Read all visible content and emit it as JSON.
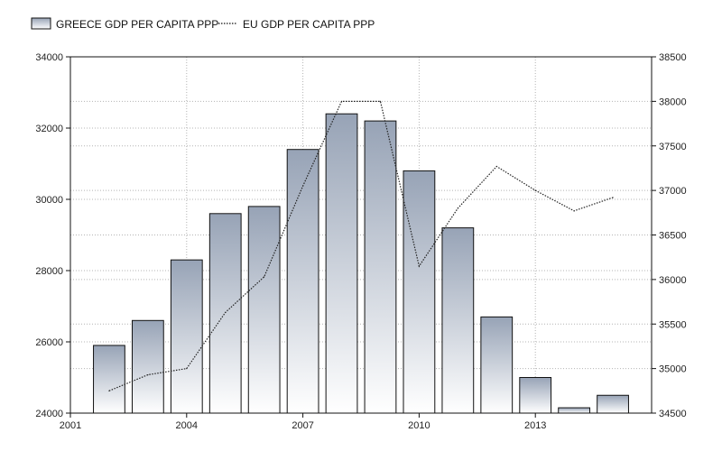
{
  "chart_data": {
    "type": "bar",
    "legend": {
      "placement": "top-left",
      "items": [
        {
          "label": "GREECE GDP PER CAPITA PPP",
          "kind": "bar"
        },
        {
          "label": "EU GDP PER CAPITA PPP",
          "kind": "dotted-line"
        }
      ]
    },
    "x": {
      "range": [
        2001,
        2016
      ],
      "tick_values": [
        2001,
        2004,
        2007,
        2010,
        2013
      ],
      "tick_labels": [
        "2001",
        "2004",
        "2007",
        "2010",
        "2013"
      ]
    },
    "y_left": {
      "range": [
        24000,
        34000
      ],
      "tick_values": [
        24000,
        26000,
        28000,
        30000,
        32000,
        34000
      ],
      "tick_labels": [
        "24000",
        "26000",
        "28000",
        "30000",
        "32000",
        "34000"
      ]
    },
    "y_right": {
      "range": [
        34500,
        38500
      ],
      "tick_values": [
        34500,
        35000,
        35500,
        36000,
        36500,
        37000,
        37500,
        38000,
        38500
      ],
      "tick_labels": [
        "34500",
        "35000",
        "35500",
        "36000",
        "36500",
        "37000",
        "37500",
        "38000",
        "38500"
      ]
    },
    "grid": true,
    "series": [
      {
        "name": "GREECE GDP PER CAPITA PPP",
        "type": "bar",
        "axis": "left",
        "x": [
          2002,
          2003,
          2004,
          2005,
          2006,
          2007,
          2008,
          2009,
          2010,
          2011,
          2012,
          2013,
          2014,
          2015
        ],
        "values": [
          25900,
          26600,
          28300,
          29600,
          29800,
          31400,
          32400,
          32200,
          30800,
          29200,
          26700,
          25000,
          24150,
          24500
        ]
      },
      {
        "name": "EU GDP PER CAPITA PPP",
        "type": "line",
        "axis": "right",
        "x": [
          2002,
          2003,
          2004,
          2005,
          2006,
          2007,
          2008,
          2009,
          2010,
          2011,
          2012,
          2013,
          2014,
          2015
        ],
        "values": [
          34750,
          34930,
          35000,
          35630,
          36030,
          37050,
          38000,
          38000,
          36150,
          36800,
          37270,
          37000,
          36770,
          36920
        ]
      }
    ],
    "colors": {
      "bar_top": "#97a3b6",
      "bar_bottom": "#ffffff",
      "bar_stroke": "#111111",
      "line": "#222222",
      "grid": "#b4b4b4"
    }
  }
}
